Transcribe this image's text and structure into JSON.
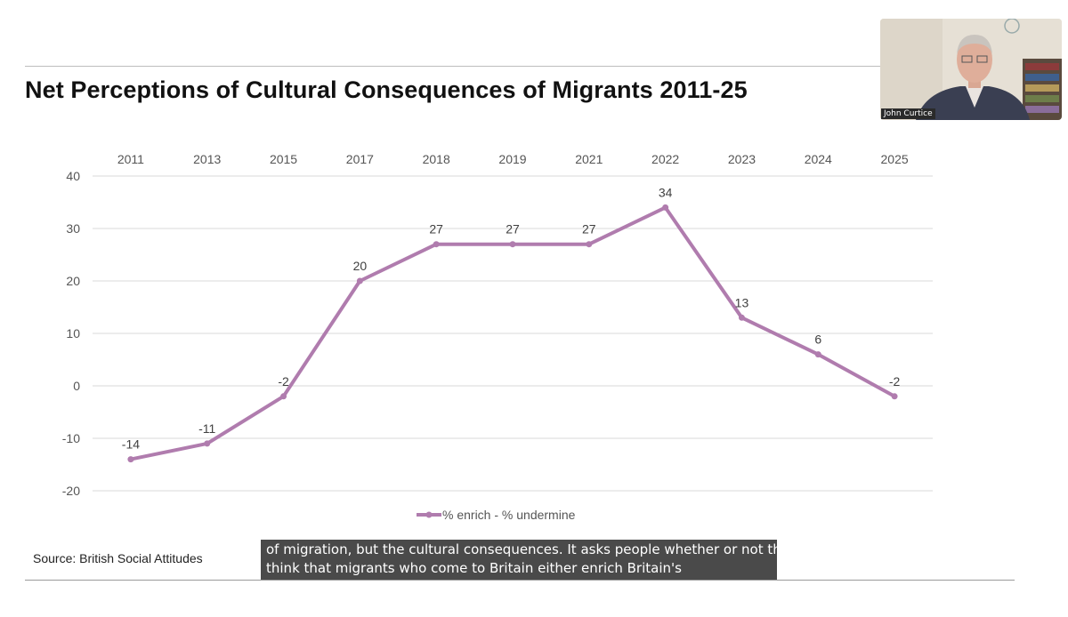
{
  "slide": {
    "title": "Net Perceptions of Cultural Consequences of Migrants 2011-25",
    "source": "Source: British Social Attitudes"
  },
  "caption": {
    "line1": "of migration, but the cultural consequences. It asks people whether or not they",
    "line2": "think that migrants who come to Britain either enrich Britain's"
  },
  "webcam": {
    "name": "John Curtice"
  },
  "chart_data": {
    "type": "line",
    "title": "Net Perceptions of Cultural Consequences of Migrants 2011-25",
    "categories": [
      "2011",
      "2013",
      "2015",
      "2017",
      "2018",
      "2019",
      "2021",
      "2022",
      "2023",
      "2024",
      "2025"
    ],
    "series": [
      {
        "name": "% enrich - % undermine",
        "values": [
          -14,
          -11,
          -2,
          20,
          27,
          27,
          27,
          34,
          13,
          6,
          -2
        ],
        "color": "#b07cae"
      }
    ],
    "ylim": [
      -20,
      40
    ],
    "yticks": [
      40,
      30,
      20,
      10,
      0,
      -10,
      -20
    ],
    "xlabel": "",
    "ylabel": "",
    "category_axis_position": "top",
    "grid": true,
    "legend": "bottom-center",
    "data_labels": true
  }
}
